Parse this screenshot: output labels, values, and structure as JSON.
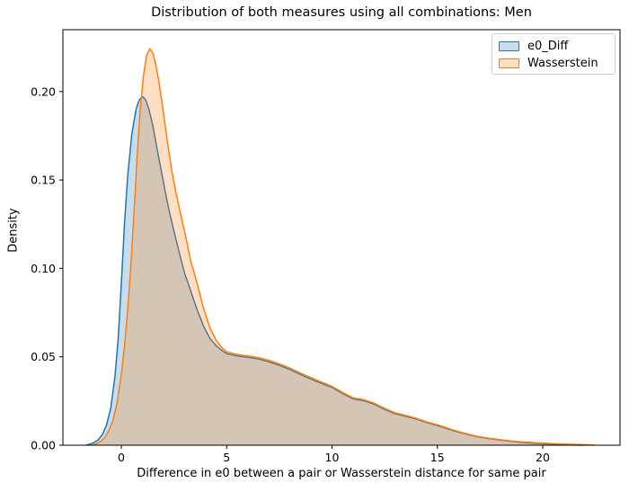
{
  "chart_data": {
    "type": "area",
    "title": "Distribution of both measures using all combinations: Men",
    "xlabel": "Difference in e0 between a pair or Wasserstein distance for same pair",
    "ylabel": "Density",
    "xlim": [
      -2.772,
      23.668
    ],
    "ylim": [
      0,
      0.235
    ],
    "grid": false,
    "legend_position": "upper right",
    "fill_opacity": 0.25,
    "line_width": 1.5,
    "spine_color": "#000000",
    "x_ticks": [
      {
        "value": 0,
        "label": "0"
      },
      {
        "value": 5,
        "label": "5"
      },
      {
        "value": 10,
        "label": "10"
      },
      {
        "value": 15,
        "label": "15"
      },
      {
        "value": 20,
        "label": "20"
      }
    ],
    "y_ticks": [
      {
        "value": 0.0,
        "label": "0.00"
      },
      {
        "value": 0.05,
        "label": "0.05"
      },
      {
        "value": 0.1,
        "label": "0.10"
      },
      {
        "value": 0.15,
        "label": "0.15"
      },
      {
        "value": 0.2,
        "label": "0.20"
      }
    ],
    "series": [
      {
        "name": "e0_Diff",
        "color": "#1f77b4",
        "peak": {
          "x": 1.0,
          "y": 0.197
        },
        "points": [
          [
            -1.68,
            0
          ],
          [
            -1.5,
            0.0006
          ],
          [
            -1.3,
            0.0015
          ],
          [
            -1.1,
            0.003
          ],
          [
            -0.9,
            0.006
          ],
          [
            -0.7,
            0.0115
          ],
          [
            -0.5,
            0.021
          ],
          [
            -0.3,
            0.039
          ],
          [
            -0.15,
            0.06
          ],
          [
            0,
            0.091
          ],
          [
            0.15,
            0.125
          ],
          [
            0.3,
            0.152
          ],
          [
            0.5,
            0.176
          ],
          [
            0.7,
            0.19
          ],
          [
            0.85,
            0.1952
          ],
          [
            1,
            0.1972
          ],
          [
            1.15,
            0.1955
          ],
          [
            1.3,
            0.1905
          ],
          [
            1.5,
            0.1805
          ],
          [
            1.7,
            0.1675
          ],
          [
            1.9,
            0.155
          ],
          [
            2.1,
            0.1425
          ],
          [
            2.3,
            0.131
          ],
          [
            2.5,
            0.121
          ],
          [
            2.8,
            0.1065
          ],
          [
            3,
            0.0975
          ],
          [
            3.3,
            0.087
          ],
          [
            3.6,
            0.0765
          ],
          [
            3.9,
            0.0675
          ],
          [
            4.2,
            0.0605
          ],
          [
            4.5,
            0.0563
          ],
          [
            4.8,
            0.0533
          ],
          [
            5,
            0.0518
          ],
          [
            5.5,
            0.0505
          ],
          [
            6,
            0.0497
          ],
          [
            6.5,
            0.0488
          ],
          [
            7,
            0.0472
          ],
          [
            7.5,
            0.0452
          ],
          [
            8,
            0.0428
          ],
          [
            8.5,
            0.04
          ],
          [
            9,
            0.0375
          ],
          [
            9.5,
            0.035
          ],
          [
            10,
            0.0327
          ],
          [
            10.5,
            0.0292
          ],
          [
            11,
            0.0262
          ],
          [
            11.5,
            0.0252
          ],
          [
            12,
            0.0232
          ],
          [
            12.5,
            0.0202
          ],
          [
            13,
            0.0178
          ],
          [
            13.5,
            0.0163
          ],
          [
            14,
            0.0148
          ],
          [
            14.5,
            0.0128
          ],
          [
            15,
            0.0111
          ],
          [
            15.5,
            0.0092
          ],
          [
            16,
            0.0074
          ],
          [
            16.5,
            0.0059
          ],
          [
            17,
            0.0046
          ],
          [
            17.5,
            0.0037
          ],
          [
            18,
            0.0029
          ],
          [
            18.5,
            0.0022
          ],
          [
            19,
            0.0016
          ],
          [
            19.5,
            0.0012
          ],
          [
            20,
            0.0009
          ],
          [
            20.5,
            0.0006
          ],
          [
            21,
            0.0003
          ],
          [
            21.5,
            0.0001
          ],
          [
            21.9,
            0
          ]
        ]
      },
      {
        "name": "Wasserstein",
        "color": "#ff7f0e",
        "peak": {
          "x": 1.35,
          "y": 0.224
        },
        "points": [
          [
            -1.42,
            0
          ],
          [
            -1.2,
            0.0008
          ],
          [
            -1,
            0.002
          ],
          [
            -0.8,
            0.004
          ],
          [
            -0.6,
            0.008
          ],
          [
            -0.4,
            0.014
          ],
          [
            -0.2,
            0.024
          ],
          [
            0,
            0.04
          ],
          [
            0.15,
            0.056
          ],
          [
            0.3,
            0.076
          ],
          [
            0.45,
            0.101
          ],
          [
            0.6,
            0.131
          ],
          [
            0.75,
            0.163
          ],
          [
            0.9,
            0.19
          ],
          [
            1.05,
            0.209
          ],
          [
            1.2,
            0.2205
          ],
          [
            1.35,
            0.2243
          ],
          [
            1.5,
            0.2218
          ],
          [
            1.65,
            0.2145
          ],
          [
            1.8,
            0.2045
          ],
          [
            2,
            0.188
          ],
          [
            2.2,
            0.1705
          ],
          [
            2.4,
            0.155
          ],
          [
            2.6,
            0.1425
          ],
          [
            2.8,
            0.1315
          ],
          [
            3,
            0.121
          ],
          [
            3.3,
            0.104
          ],
          [
            3.6,
            0.0915
          ],
          [
            3.9,
            0.0775
          ],
          [
            4.2,
            0.0665
          ],
          [
            4.5,
            0.0593
          ],
          [
            4.8,
            0.0548
          ],
          [
            5,
            0.0528
          ],
          [
            5.5,
            0.0513
          ],
          [
            6,
            0.0505
          ],
          [
            6.5,
            0.0496
          ],
          [
            7,
            0.048
          ],
          [
            7.5,
            0.046
          ],
          [
            8,
            0.0436
          ],
          [
            8.5,
            0.0408
          ],
          [
            9,
            0.0382
          ],
          [
            9.5,
            0.0357
          ],
          [
            10,
            0.0333
          ],
          [
            10.5,
            0.0298
          ],
          [
            11,
            0.0268
          ],
          [
            11.5,
            0.0258
          ],
          [
            12,
            0.0238
          ],
          [
            12.5,
            0.0208
          ],
          [
            13,
            0.0183
          ],
          [
            13.5,
            0.0168
          ],
          [
            14,
            0.0152
          ],
          [
            14.5,
            0.0132
          ],
          [
            15,
            0.0115
          ],
          [
            15.5,
            0.0096
          ],
          [
            16,
            0.0077
          ],
          [
            16.5,
            0.0061
          ],
          [
            17,
            0.0048
          ],
          [
            17.5,
            0.0039
          ],
          [
            18,
            0.0031
          ],
          [
            18.5,
            0.0024
          ],
          [
            19,
            0.0019
          ],
          [
            19.5,
            0.0015
          ],
          [
            20,
            0.0012
          ],
          [
            20.5,
            0.0009
          ],
          [
            21,
            0.0007
          ],
          [
            21.5,
            0.0005
          ],
          [
            22,
            0.0003
          ],
          [
            22.45,
            0
          ]
        ]
      }
    ]
  }
}
